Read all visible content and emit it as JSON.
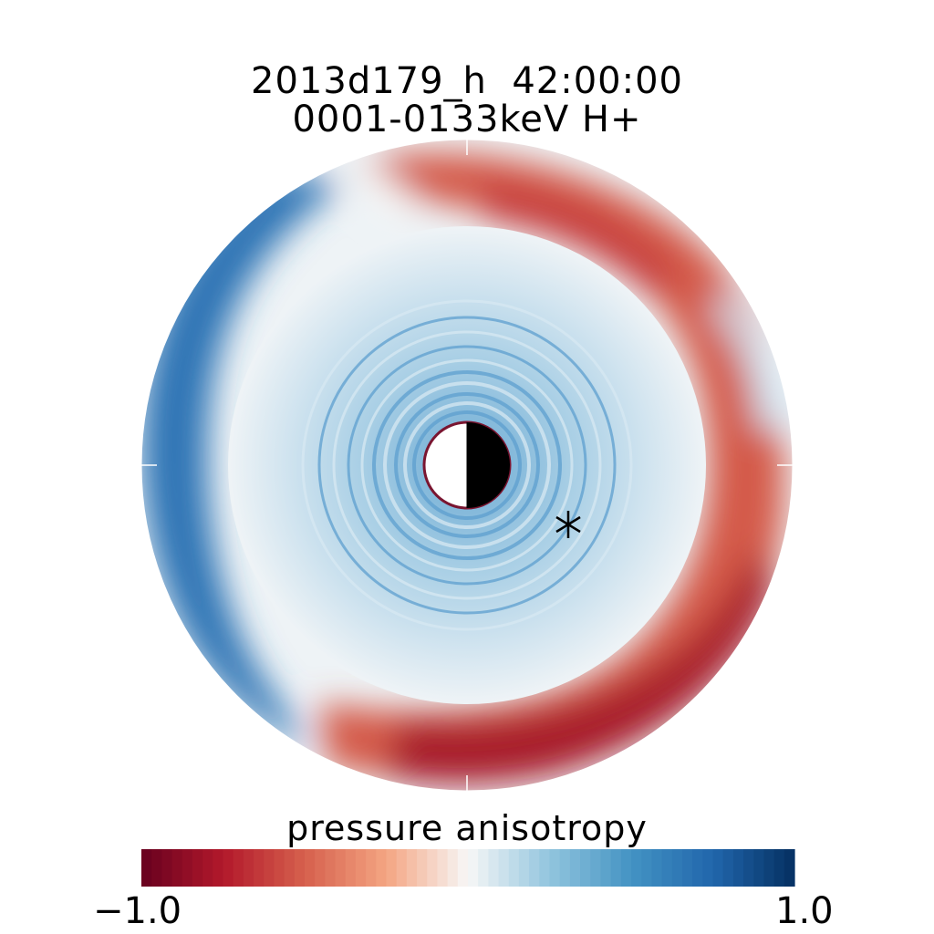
{
  "chart_data": {
    "type": "heatmap",
    "title": "2013d179_h  42:00:00",
    "subtitle": "0001-0133keV H+",
    "colorbar": {
      "label": "pressure anisotropy",
      "min_label": "-1.0",
      "max_label": "1.0",
      "range": [
        -1.0,
        1.0
      ],
      "colormap": "red-white-blue (RdBu)"
    },
    "projection": "polar equatorial plane, Earth at center (dayside half white, nightside half black)",
    "marker": "asterisk (satellite position)",
    "description_regions": [
      {
        "region": "inner rings",
        "value": 0.35
      },
      {
        "region": "outer dusk/dawn-west",
        "value": 0.8
      },
      {
        "region": "outer east/south band",
        "value": -0.8
      }
    ]
  },
  "colors": {
    "neg_extreme": "#67001f",
    "neg": "#b2182b",
    "neg_mid": "#d6604d",
    "neg_light": "#f4a582",
    "zero": "#f7f7f7",
    "pos_light": "#92c5de",
    "pos_mid": "#4393c3",
    "pos": "#2166ac",
    "pos_extreme": "#053061"
  }
}
